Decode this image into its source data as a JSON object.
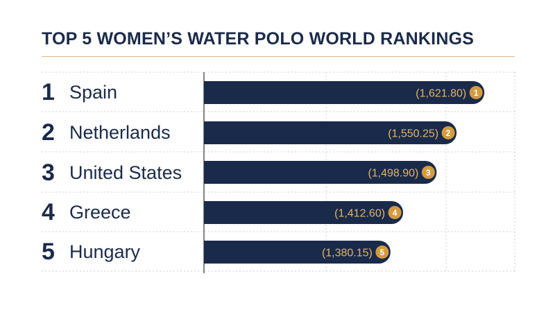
{
  "title": "TOP 5 WOMEN’S WATER POLO WORLD RANKINGS",
  "colors": {
    "bar": "#1a2a4a",
    "accent": "#d49b3e",
    "value_text": "#e5b563",
    "grid": "#cfcfcf",
    "title_rule": "#d9b98a",
    "text": "#1a2a4a"
  },
  "chart_data": {
    "type": "bar",
    "orientation": "horizontal",
    "title": "TOP 5 WOMEN’S WATER POLO WORLD RANKINGS",
    "xlim": [
      900,
      1700
    ],
    "grid": true,
    "rows": [
      {
        "rank": "1",
        "country": "Spain",
        "value": 1621.8,
        "label": "(1,621.80)"
      },
      {
        "rank": "2",
        "country": "Netherlands",
        "value": 1550.25,
        "label": "(1,550.25)"
      },
      {
        "rank": "3",
        "country": "United States",
        "value": 1498.9,
        "label": "(1,498.90)"
      },
      {
        "rank": "4",
        "country": "Greece",
        "value": 1412.6,
        "label": "(1,412.60)"
      },
      {
        "rank": "5",
        "country": "Hungary",
        "value": 1380.15,
        "label": "(1,380.15)"
      }
    ]
  }
}
